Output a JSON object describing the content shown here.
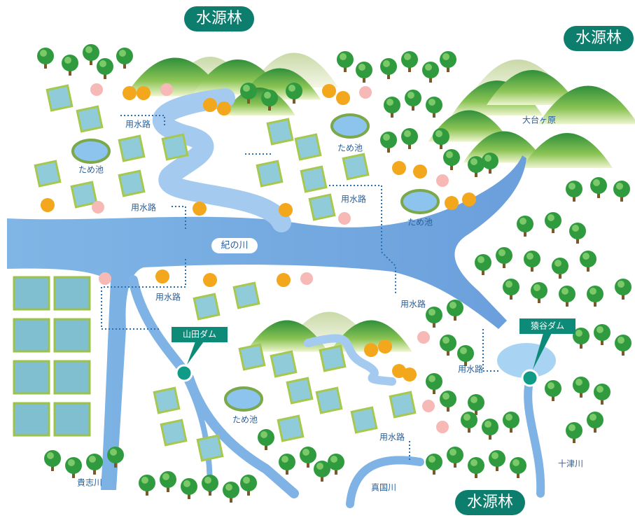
{
  "forest_labels": [
    "水源林",
    "水源林",
    "水源林"
  ],
  "place_labels": [
    "大台ヶ原"
  ],
  "river_labels": [
    "紀の川",
    "十津川",
    "真国川",
    "貴志川"
  ],
  "dam_labels": [
    "山田ダム",
    "猿谷ダム"
  ],
  "canal_labels": [
    "用水路",
    "用水路",
    "用水路",
    "用水路",
    "用水路",
    "用水路",
    "用水路"
  ],
  "pond_labels": [
    "ため池",
    "ため池",
    "ため池",
    "ため池"
  ]
}
